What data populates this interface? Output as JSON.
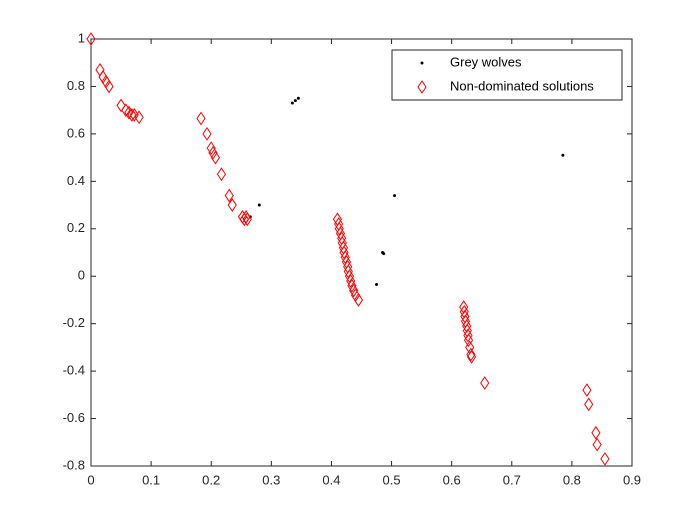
{
  "chart_data": {
    "type": "scatter",
    "series": [
      {
        "name": "Grey wolves",
        "color": "#000000",
        "marker": "dot",
        "x": [
          0.335,
          0.34,
          0.345,
          0.28,
          0.265,
          0.505,
          0.485,
          0.487,
          0.475,
          0.785
        ],
        "y": [
          0.73,
          0.74,
          0.75,
          0.3,
          0.25,
          0.34,
          0.1,
          0.095,
          -0.035,
          0.51
        ]
      },
      {
        "name": "Non-dominated solutions",
        "color": "#ff0000",
        "marker": "diamond",
        "x": [
          0,
          0.015,
          0.02,
          0.025,
          0.03,
          0.05,
          0.058,
          0.063,
          0.068,
          0.072,
          0.08,
          0.183,
          0.193,
          0.2,
          0.203,
          0.207,
          0.217,
          0.23,
          0.235,
          0.252,
          0.255,
          0.258,
          0.26,
          0.41,
          0.412,
          0.413,
          0.415,
          0.417,
          0.418,
          0.42,
          0.421,
          0.423,
          0.425,
          0.427,
          0.428,
          0.43,
          0.432,
          0.434,
          0.437,
          0.44,
          0.445,
          0.62,
          0.621,
          0.622,
          0.623,
          0.625,
          0.626,
          0.627,
          0.628,
          0.63,
          0.632,
          0.633,
          0.655,
          0.825,
          0.828,
          0.84,
          0.842,
          0.855
        ],
        "y": [
          1,
          0.87,
          0.84,
          0.82,
          0.8,
          0.72,
          0.7,
          0.69,
          0.68,
          0.68,
          0.67,
          0.665,
          0.6,
          0.54,
          0.52,
          0.5,
          0.43,
          0.34,
          0.3,
          0.25,
          0.24,
          0.25,
          0.24,
          0.24,
          0.22,
          0.2,
          0.18,
          0.16,
          0.14,
          0.12,
          0.1,
          0.08,
          0.06,
          0.04,
          0.02,
          0,
          -0.02,
          -0.04,
          -0.06,
          -0.08,
          -0.1,
          -0.13,
          -0.15,
          -0.17,
          -0.19,
          -0.21,
          -0.23,
          -0.25,
          -0.27,
          -0.3,
          -0.33,
          -0.34,
          -0.45,
          -0.48,
          -0.54,
          -0.66,
          -0.71,
          -0.77
        ]
      }
    ],
    "xlim": [
      0,
      0.9
    ],
    "xticks": [
      0,
      0.1,
      0.2,
      0.3,
      0.4,
      0.5,
      0.6,
      0.7,
      0.8,
      0.9
    ],
    "ylim": [
      -0.8,
      1
    ],
    "yticks": [
      -0.8,
      -0.6,
      -0.4,
      -0.2,
      0,
      0.2,
      0.4,
      0.6,
      0.8,
      1
    ],
    "legend": "northeast"
  }
}
